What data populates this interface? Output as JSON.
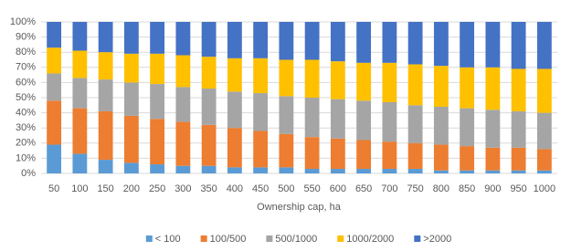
{
  "chart_data": {
    "type": "stacked_bar_percent",
    "x_label": "Ownership cap, ha",
    "categories": [
      "50",
      "100",
      "150",
      "200",
      "250",
      "300",
      "350",
      "400",
      "450",
      "500",
      "550",
      "600",
      "650",
      "700",
      "750",
      "800",
      "850",
      "900",
      "950",
      "1000"
    ],
    "series": [
      {
        "name": "< 100",
        "color": "#5b9bd5",
        "values": [
          19,
          13,
          9,
          7,
          6,
          5,
          5,
          4,
          4,
          4,
          3,
          3,
          3,
          3,
          3,
          2,
          2,
          2,
          2,
          2
        ]
      },
      {
        "name": "100/500",
        "color": "#ed7d31",
        "values": [
          29,
          30,
          32,
          31,
          30,
          29,
          27,
          26,
          24,
          22,
          21,
          20,
          19,
          18,
          17,
          17,
          16,
          15,
          15,
          14
        ]
      },
      {
        "name": "500/1000",
        "color": "#a5a5a5",
        "values": [
          18,
          20,
          21,
          22,
          23,
          23,
          24,
          24,
          25,
          25,
          26,
          26,
          26,
          26,
          25,
          25,
          25,
          25,
          24,
          24
        ]
      },
      {
        "name": "1000/2000",
        "color": "#ffc000",
        "values": [
          17,
          18,
          18,
          19,
          20,
          21,
          21,
          22,
          23,
          24,
          25,
          25,
          25,
          26,
          27,
          27,
          27,
          28,
          28,
          29
        ]
      },
      {
        "name": ">2000",
        "color": "#4472c4",
        "values": [
          17,
          19,
          20,
          21,
          21,
          22,
          23,
          24,
          24,
          25,
          25,
          26,
          27,
          27,
          28,
          29,
          30,
          30,
          31,
          31
        ]
      }
    ],
    "ylim": [
      0,
      100
    ],
    "yticks": [
      {
        "value": 0,
        "label": "0%"
      },
      {
        "value": 10,
        "label": "10%"
      },
      {
        "value": 20,
        "label": "20%"
      },
      {
        "value": 30,
        "label": "30%"
      },
      {
        "value": 40,
        "label": "40%"
      },
      {
        "value": 50,
        "label": "50%"
      },
      {
        "value": 60,
        "label": "60%"
      },
      {
        "value": 70,
        "label": "70%"
      },
      {
        "value": 80,
        "label": "80%"
      },
      {
        "value": 90,
        "label": "90%"
      },
      {
        "value": 100,
        "label": "100%"
      }
    ],
    "grid": true,
    "legend": "bottom"
  }
}
